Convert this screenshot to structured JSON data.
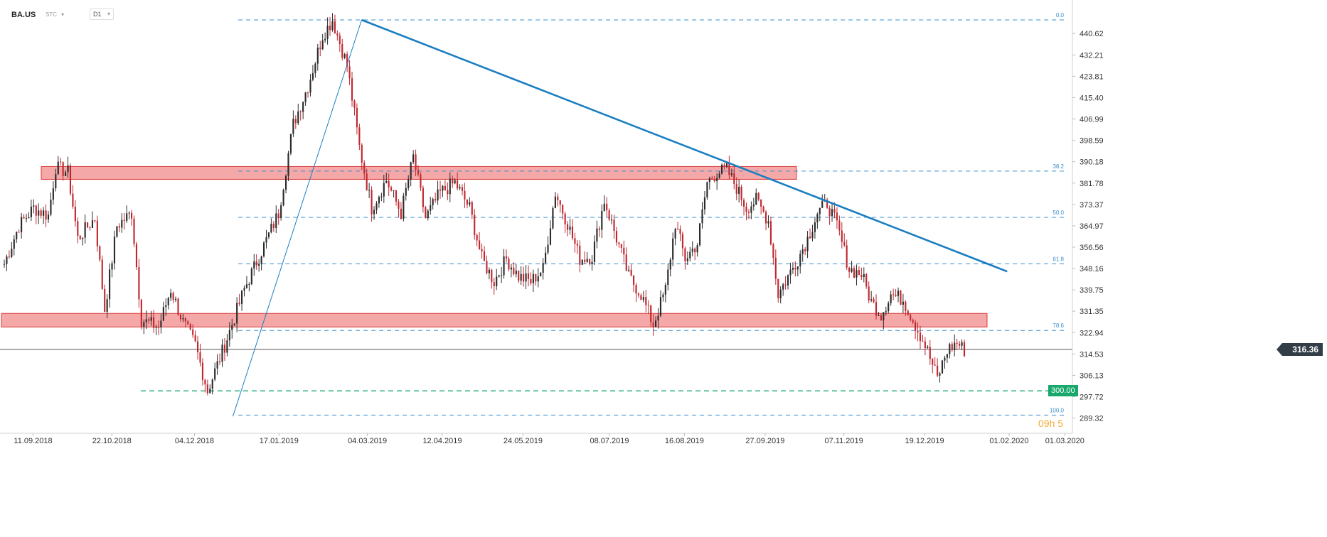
{
  "header": {
    "symbol": "BA.US",
    "subtype": "STC",
    "timeframe": "D1"
  },
  "current_price": "316.36",
  "support_label": "300.00",
  "watermark": "09h 5",
  "colors": {
    "up": "#2b2b2b",
    "down": "#c0282f",
    "trendline": "#1a7ec2",
    "fib": "#3a8fd0",
    "zone_fill": "#f4a3a3",
    "zone_stroke": "#d93a3a",
    "support": "#18a86b"
  },
  "chart_data": {
    "type": "candlestick",
    "ylim": [
      285.0,
      446.0
    ],
    "y_ticks": [
      "440.62",
      "432.21",
      "423.81",
      "415.40",
      "406.99",
      "398.59",
      "390.18",
      "381.78",
      "373.37",
      "364.97",
      "356.56",
      "348.16",
      "339.75",
      "331.35",
      "322.94",
      "314.53",
      "306.13",
      "297.72",
      "289.32"
    ],
    "x_ticks": [
      "11.09.2018",
      "22.10.2018",
      "04.12.2018",
      "17.01.2019",
      "04.03.2019",
      "12.04.2019",
      "24.05.2019",
      "08.07.2019",
      "16.08.2019",
      "27.09.2019",
      "07.11.2019",
      "19.12.2019",
      "01.02.2020",
      "01.03.2020"
    ],
    "fibonacci": [
      {
        "label": "0.0",
        "price": 446.0
      },
      {
        "label": "38.2",
        "price": 386.5
      },
      {
        "label": "50.0",
        "price": 368.3
      },
      {
        "label": "61.8",
        "price": 350.0
      },
      {
        "label": "78.6",
        "price": 323.8
      },
      {
        "label": "100.0",
        "price": 290.5
      }
    ],
    "zones": [
      {
        "top": 388.3,
        "bottom": 385.5
      },
      {
        "top": 330.5,
        "bottom": 327.4
      }
    ],
    "trendlines": [
      {
        "from": {
          "date": "2019-03-01",
          "price": 446.0
        },
        "to": {
          "date": "2020-01-31",
          "price": 347.0
        }
      },
      {
        "from": {
          "date": "2018-12-24",
          "price": 290.0
        },
        "to": {
          "date": "2019-03-01",
          "price": 446.0
        }
      }
    ],
    "support_level": 300.0,
    "last_price": 316.36,
    "path": [
      [
        0,
        350
      ],
      [
        6,
        365
      ],
      [
        12,
        372
      ],
      [
        18,
        369
      ],
      [
        21,
        388
      ],
      [
        26,
        386
      ],
      [
        30,
        360
      ],
      [
        37,
        368
      ],
      [
        41,
        332
      ],
      [
        46,
        365
      ],
      [
        52,
        370
      ],
      [
        56,
        328
      ],
      [
        63,
        325
      ],
      [
        68,
        340
      ],
      [
        73,
        327
      ],
      [
        78,
        318
      ],
      [
        83,
        300
      ],
      [
        90,
        318
      ],
      [
        98,
        340
      ],
      [
        105,
        355
      ],
      [
        112,
        370
      ],
      [
        118,
        405
      ],
      [
        124,
        420
      ],
      [
        130,
        440
      ],
      [
        134,
        446
      ],
      [
        140,
        428
      ],
      [
        145,
        396
      ],
      [
        150,
        372
      ],
      [
        156,
        383
      ],
      [
        162,
        370
      ],
      [
        167,
        392
      ],
      [
        172,
        368
      ],
      [
        178,
        378
      ],
      [
        184,
        382
      ],
      [
        190,
        372
      ],
      [
        195,
        352
      ],
      [
        200,
        343
      ],
      [
        205,
        352
      ],
      [
        210,
        345
      ],
      [
        215,
        343
      ],
      [
        220,
        348
      ],
      [
        225,
        378
      ],
      [
        230,
        366
      ],
      [
        235,
        352
      ],
      [
        240,
        353
      ],
      [
        245,
        375
      ],
      [
        250,
        360
      ],
      [
        255,
        345
      ],
      [
        260,
        338
      ],
      [
        265,
        326
      ],
      [
        270,
        340
      ],
      [
        274,
        366
      ],
      [
        278,
        352
      ],
      [
        283,
        358
      ],
      [
        287,
        382
      ],
      [
        291,
        386
      ],
      [
        295,
        387
      ],
      [
        299,
        380
      ],
      [
        303,
        372
      ],
      [
        307,
        375
      ],
      [
        312,
        367
      ],
      [
        316,
        338
      ],
      [
        320,
        345
      ],
      [
        324,
        352
      ],
      [
        328,
        360
      ],
      [
        332,
        370
      ],
      [
        336,
        374
      ],
      [
        340,
        365
      ],
      [
        345,
        348
      ],
      [
        350,
        346
      ],
      [
        354,
        335
      ],
      [
        358,
        330
      ],
      [
        362,
        338
      ],
      [
        367,
        336
      ],
      [
        372,
        326
      ],
      [
        376,
        318
      ],
      [
        381,
        305
      ],
      [
        385,
        316
      ],
      [
        389,
        319
      ],
      [
        392,
        316
      ]
    ],
    "x_start": "2018-08-27",
    "x_end": "2020-03-02"
  }
}
